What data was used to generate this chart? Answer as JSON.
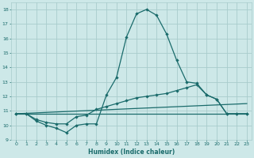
{
  "xlabel": "Humidex (Indice chaleur)",
  "xlim": [
    -0.5,
    23.5
  ],
  "ylim": [
    9,
    18.5
  ],
  "yticks": [
    9,
    10,
    11,
    12,
    13,
    14,
    15,
    16,
    17,
    18
  ],
  "xticks": [
    0,
    1,
    2,
    3,
    4,
    5,
    6,
    7,
    8,
    9,
    10,
    11,
    12,
    13,
    14,
    15,
    16,
    17,
    18,
    19,
    20,
    21,
    22,
    23
  ],
  "bg_color": "#cde8e8",
  "grid_color": "#a8cccc",
  "line_color": "#1a6b6b",
  "line1_x": [
    0,
    1,
    2,
    3,
    4,
    5,
    6,
    7,
    8,
    9,
    10,
    11,
    12,
    13,
    14,
    15,
    16,
    17,
    18,
    19,
    20,
    21,
    22,
    23
  ],
  "line1_y": [
    10.8,
    10.8,
    10.3,
    10.0,
    9.8,
    9.5,
    10.0,
    10.1,
    10.1,
    12.1,
    13.3,
    16.1,
    17.7,
    18.0,
    17.6,
    16.3,
    14.5,
    13.0,
    12.9,
    12.1,
    11.8,
    10.8,
    10.8,
    10.8
  ],
  "line2_x": [
    0,
    1,
    2,
    3,
    4,
    5,
    6,
    7,
    8,
    9,
    10,
    11,
    12,
    13,
    14,
    15,
    16,
    17,
    18,
    19,
    20,
    21,
    22,
    23
  ],
  "line2_y": [
    10.8,
    10.8,
    10.4,
    10.2,
    10.1,
    10.1,
    10.6,
    10.7,
    11.1,
    11.3,
    11.5,
    11.7,
    11.9,
    12.0,
    12.1,
    12.2,
    12.4,
    12.6,
    12.8,
    12.1,
    11.8,
    10.8,
    10.8,
    10.8
  ],
  "line3_x": [
    0,
    23
  ],
  "line3_y": [
    10.8,
    11.5
  ],
  "line4_x": [
    0,
    23
  ],
  "line4_y": [
    10.8,
    10.8
  ]
}
